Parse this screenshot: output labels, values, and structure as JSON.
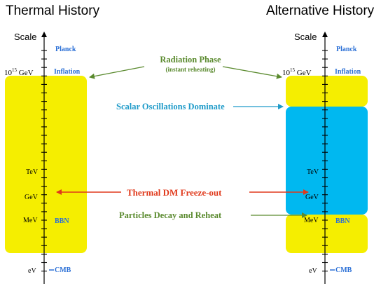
{
  "colors": {
    "radiation": "#f5ee00",
    "scalar": "#00b8f0",
    "axis": "#000000",
    "epoch_text": "#2a6fd6",
    "green": "#5a8a2e",
    "blue": "#1f9bc9",
    "red": "#e0391b"
  },
  "left_panel": {
    "title": "Thermal History",
    "scale_label": "Scale",
    "energy_labels": {
      "gev15_base": "10",
      "gev15_exp": "15",
      "gev15_unit": " GeV",
      "tev": "TeV",
      "gev": "GeV",
      "mev": "MeV",
      "ev": "eV"
    },
    "epochs": {
      "planck": "Planck",
      "inflation": "Inflation",
      "bbn": "BBN",
      "cmb": "CMB"
    }
  },
  "right_panel": {
    "title": "Alternative History",
    "scale_label": "Scale",
    "energy_labels": {
      "gev15_base": "10",
      "gev15_exp": "15",
      "gev15_unit": " GeV",
      "tev": "TeV",
      "gev": "GeV",
      "mev": "MeV",
      "ev": "eV"
    },
    "epochs": {
      "planck": "Planck",
      "inflation": "Inflation",
      "bbn": "BBN",
      "cmb": "CMB"
    }
  },
  "annotations": {
    "radiation_phase": "Radiation Phase",
    "instant_reheating": "(instant reheating)",
    "scalar_oscillations": "Scalar Oscillations Dominate",
    "thermal_dm": "Thermal DM Freeze-out",
    "particles_decay": "Particles Decay and Reheat"
  }
}
